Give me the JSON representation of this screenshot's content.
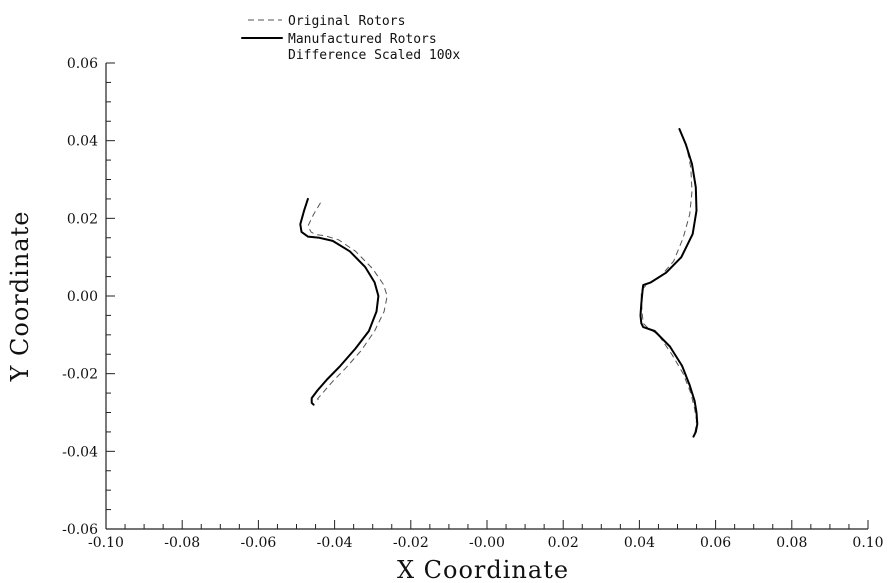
{
  "chart_data": {
    "type": "line",
    "xlabel": "X Coordinate",
    "ylabel": "Y Coordinate",
    "xlim": [
      -0.1,
      0.1
    ],
    "ylim": [
      -0.06,
      0.06
    ],
    "x_ticks": [
      "-0.10",
      "-0.08",
      "-0.06",
      "-0.04",
      "-0.02",
      "-0.00",
      "0.02",
      "0.04",
      "0.06",
      "0.08",
      "0.10"
    ],
    "y_ticks": [
      "-0.06",
      "-0.04",
      "-0.02",
      "0.00",
      "0.02",
      "0.04",
      "0.06"
    ],
    "legend": {
      "position": "top-center",
      "entries": [
        "Original Rotors",
        "Manufactured Rotors",
        "Difference Scaled 100x"
      ]
    },
    "series": [
      {
        "name": "Original Rotors",
        "style": "dashed",
        "segments": [
          {
            "x": [
              -0.0437,
              -0.0455,
              -0.047,
              -0.0462,
              -0.045,
              -0.0425,
              -0.039,
              -0.0345,
              -0.03,
              -0.0272,
              -0.0262,
              -0.027,
              -0.0295,
              -0.033,
              -0.037,
              -0.0405,
              -0.043,
              -0.0445,
              -0.044
            ],
            "y": [
              0.024,
              0.021,
              0.018,
              0.0165,
              0.0158,
              0.0155,
              0.0145,
              0.0115,
              0.007,
              0.003,
              0.0,
              -0.004,
              -0.009,
              -0.014,
              -0.0185,
              -0.022,
              -0.0248,
              -0.0265,
              -0.027
            ]
          },
          {
            "x": [
              0.051,
              0.0525,
              0.0535,
              0.0538,
              0.0532,
              0.0515,
              0.049,
              0.0455,
              0.042,
              0.0405,
              0.0405,
              0.0408,
              0.041,
              0.042,
              0.045,
              0.0485,
              0.0515,
              0.0535,
              0.0545,
              0.055,
              0.0548,
              0.0545
            ],
            "y": [
              0.042,
              0.038,
              0.033,
              0.027,
              0.021,
              0.015,
              0.009,
              0.005,
              0.003,
              0.0015,
              -0.001,
              -0.005,
              -0.007,
              -0.008,
              -0.01,
              -0.015,
              -0.02,
              -0.025,
              -0.029,
              -0.032,
              -0.034,
              -0.0355
            ]
          }
        ]
      },
      {
        "name": "Manufactured Rotors",
        "style": "solid",
        "segments": [
          {
            "x": [
              -0.047,
              -0.048,
              -0.049,
              -0.0487,
              -0.047,
              -0.044,
              -0.0405,
              -0.036,
              -0.032,
              -0.0295,
              -0.0285,
              -0.029,
              -0.031,
              -0.0345,
              -0.0385,
              -0.042,
              -0.0445,
              -0.046,
              -0.046,
              -0.0455
            ],
            "y": [
              0.025,
              0.022,
              0.0185,
              0.0165,
              0.0153,
              0.015,
              0.0142,
              0.0115,
              0.0075,
              0.0035,
              0.0,
              -0.004,
              -0.009,
              -0.0135,
              -0.018,
              -0.0215,
              -0.0243,
              -0.0263,
              -0.0275,
              -0.028
            ]
          },
          {
            "x": [
              0.0505,
              0.0522,
              0.0538,
              0.0548,
              0.055,
              0.054,
              0.051,
              0.047,
              0.043,
              0.041,
              0.0408,
              0.0405,
              0.0403,
              0.0405,
              0.041,
              0.044,
              0.048,
              0.0512,
              0.0532,
              0.0545,
              0.055,
              0.0552,
              0.0548,
              0.0542
            ],
            "y": [
              0.043,
              0.039,
              0.034,
              0.028,
              0.022,
              0.016,
              0.01,
              0.006,
              0.0035,
              0.0028,
              0.001,
              -0.002,
              -0.005,
              -0.007,
              -0.008,
              -0.009,
              -0.013,
              -0.018,
              -0.023,
              -0.027,
              -0.03,
              -0.033,
              -0.035,
              -0.0362
            ]
          }
        ]
      }
    ]
  }
}
